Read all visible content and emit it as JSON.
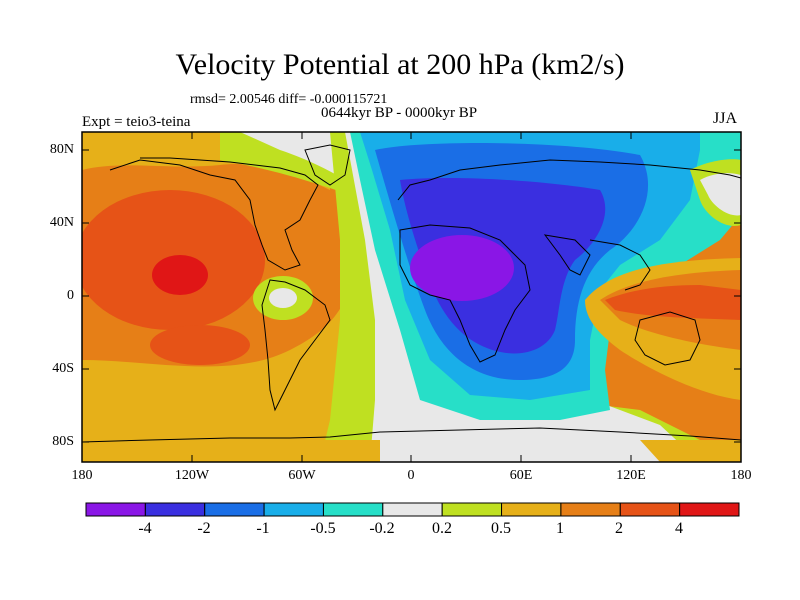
{
  "header": {
    "title": "Velocity Potential at 200 hPa (km2/s)",
    "stats": "rmsd= 2.00546 diff= -0.000115721",
    "period": "0644kyr BP - 0000kyr BP",
    "experiment": "Expt = teio3-teina",
    "season": "JJA"
  },
  "map": {
    "lon_range": [
      -180,
      180
    ],
    "lat_range": [
      -90,
      90
    ],
    "y_ticks": [
      "80N",
      "40N",
      "0",
      "40S",
      "80S"
    ],
    "x_ticks": [
      "180",
      "120W",
      "60W",
      "0",
      "60E",
      "120E",
      "180"
    ]
  },
  "colorbar": {
    "labels": [
      "-4",
      "-2",
      "-1",
      "-0.5",
      "-0.2",
      "0.2",
      "0.5",
      "1",
      "2",
      "4"
    ],
    "colors": [
      "#8a16e6",
      "#3a2fe0",
      "#1a6ee6",
      "#19aee9",
      "#27dfc8",
      "#e8e8e8",
      "#bfe021",
      "#e6b019",
      "#e67f17",
      "#e65317",
      "#e01616"
    ]
  }
}
